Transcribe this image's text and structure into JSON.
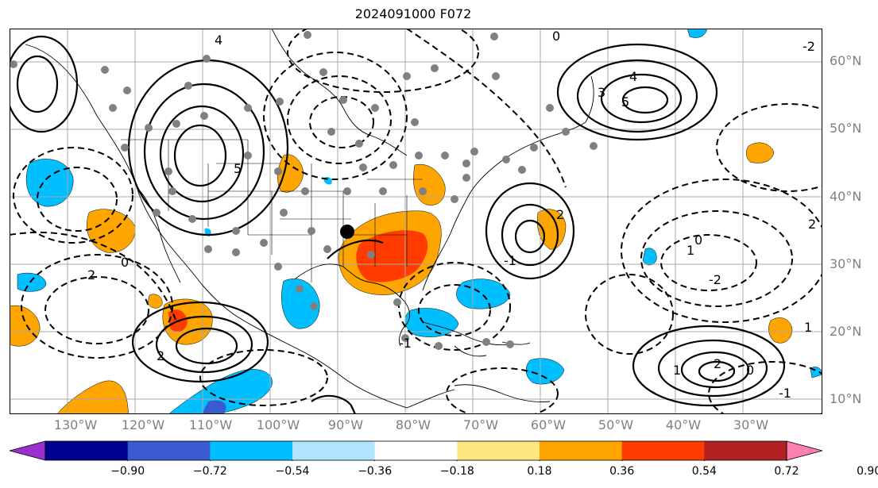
{
  "title": "2024091000 F072",
  "lat_labels": [
    "60°N",
    "50°N",
    "40°N",
    "30°N",
    "20°N",
    "10°N"
  ],
  "lon_labels": [
    "130°W",
    "120°W",
    "110°W",
    "100°W",
    "90°W",
    "80°W",
    "70°W",
    "60°W",
    "50°W",
    "40°W",
    "30°W"
  ],
  "colorbar": {
    "ticks": [
      "−0.90",
      "−0.72",
      "−0.54",
      "−0.36",
      "−0.18",
      "0.18",
      "0.36",
      "0.54",
      "0.72",
      "0.90"
    ],
    "colors": [
      "#9b30d0",
      "#000090",
      "#3a5ad0",
      "#00bfff",
      "#b0e4ff",
      "#ffffff",
      "#ffe680",
      "#ffa500",
      "#ff3b00",
      "#b22222",
      "#ff80b0"
    ]
  },
  "contour_labels": [
    "0",
    "2",
    "-1",
    "4",
    "5",
    "3",
    "1",
    "-2",
    "0",
    "2",
    "1",
    "-1",
    "2",
    "0",
    "4",
    "5",
    "2",
    "-2",
    "0",
    "1",
    "2",
    "-1"
  ]
}
